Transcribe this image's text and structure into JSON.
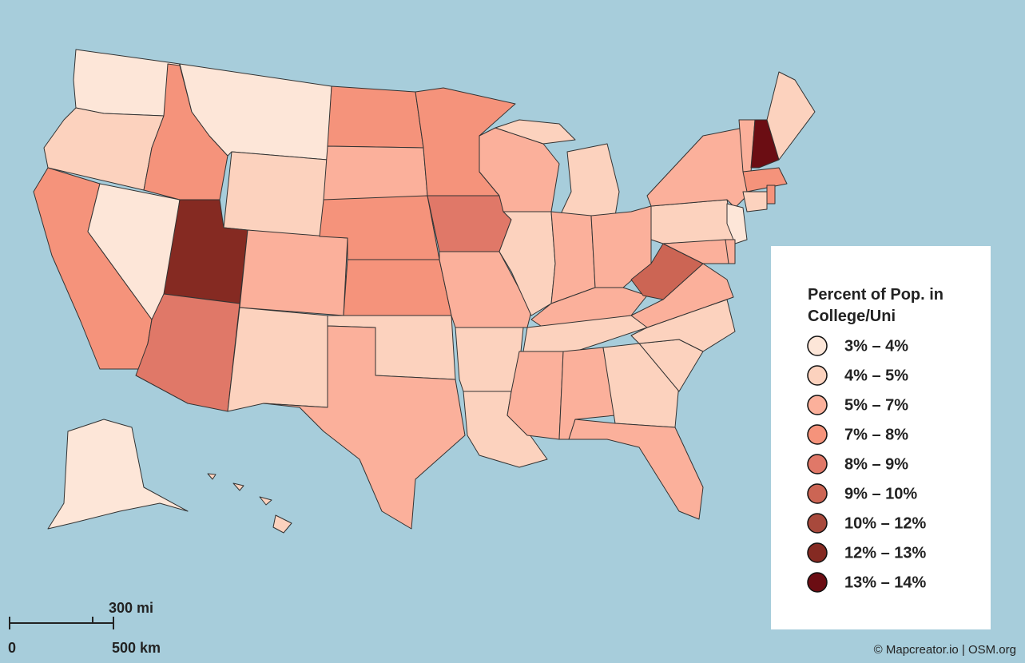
{
  "legend": {
    "title": "Percent of Pop. in College/Uni",
    "items": [
      {
        "label": "3% – 4%",
        "color": "#fde6d8"
      },
      {
        "label": "4% – 5%",
        "color": "#fcd2be"
      },
      {
        "label": "5% – 7%",
        "color": "#fbb09b"
      },
      {
        "label": "7% – 8%",
        "color": "#f5937b"
      },
      {
        "label": "8% – 9%",
        "color": "#e07868"
      },
      {
        "label": "9% – 10%",
        "color": "#cc6554"
      },
      {
        "label": "10% – 12%",
        "color": "#a8493c"
      },
      {
        "label": "12% – 13%",
        "color": "#852a22"
      },
      {
        "label": "13% – 14%",
        "color": "#6b0d13"
      }
    ]
  },
  "scale": {
    "miles": "300 mi",
    "zero": "0",
    "km": "500 km"
  },
  "attribution": "© Mapcreator.io | OSM.org"
}
